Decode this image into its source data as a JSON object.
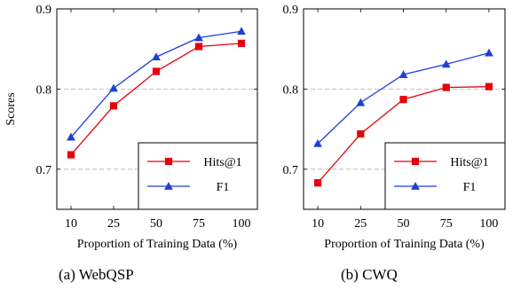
{
  "chart_data": [
    {
      "type": "line",
      "caption": "(a) WebQSP",
      "categories": [
        "10",
        "25",
        "50",
        "75",
        "100"
      ],
      "xlabel": "Proportion of Training Data (%)",
      "ylabel": "Scores",
      "ylim": [
        0.65,
        0.9
      ],
      "yticks": [
        "0.7",
        "0.8",
        "0.9"
      ],
      "ytick_values": [
        0.7,
        0.8,
        0.9
      ],
      "grid": "horizontal dashed at 0.7 and 0.8",
      "legend": "bottom-right",
      "series": [
        {
          "name": "Hits@1",
          "color": "#e8000b",
          "marker": "square",
          "values": [
            0.718,
            0.779,
            0.822,
            0.853,
            0.857
          ]
        },
        {
          "name": "F1",
          "color": "#1f3fd6",
          "marker": "triangle",
          "values": [
            0.74,
            0.801,
            0.84,
            0.864,
            0.872
          ]
        }
      ]
    },
    {
      "type": "line",
      "caption": "(b) CWQ",
      "categories": [
        "10",
        "25",
        "50",
        "75",
        "100"
      ],
      "xlabel": "Proportion of Training Data (%)",
      "ylabel": "",
      "ylim": [
        0.65,
        0.9
      ],
      "yticks": [
        "0.7",
        "0.8",
        "0.9"
      ],
      "ytick_values": [
        0.7,
        0.8,
        0.9
      ],
      "grid": "horizontal dashed at 0.7 and 0.8",
      "legend": "bottom-right",
      "series": [
        {
          "name": "Hits@1",
          "color": "#e8000b",
          "marker": "square",
          "values": [
            0.683,
            0.744,
            0.787,
            0.802,
            0.803
          ]
        },
        {
          "name": "F1",
          "color": "#1f3fd6",
          "marker": "triangle",
          "values": [
            0.732,
            0.783,
            0.818,
            0.831,
            0.845
          ]
        }
      ]
    }
  ]
}
